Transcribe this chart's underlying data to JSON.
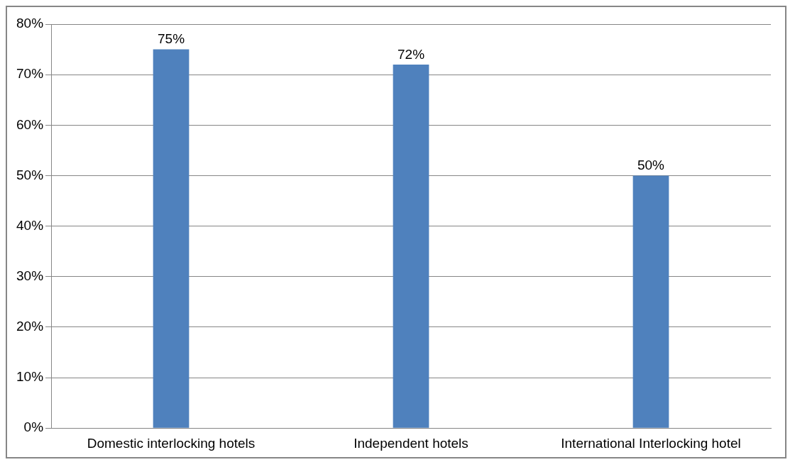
{
  "chart_data": {
    "type": "bar",
    "categories": [
      "Domestic interlocking hotels",
      "Independent hotels",
      "International Interlocking hotel"
    ],
    "values": [
      75,
      72,
      50
    ],
    "color": "#4f81bd",
    "value_labels": [
      "75%",
      "72%",
      "50%"
    ],
    "ylim": [
      0,
      80
    ],
    "yticks": [
      {
        "value": 0,
        "label": "0%"
      },
      {
        "value": 10,
        "label": "10%"
      },
      {
        "value": 20,
        "label": "20%"
      },
      {
        "value": 30,
        "label": "30%"
      },
      {
        "value": 40,
        "label": "40%"
      },
      {
        "value": 50,
        "label": "50%"
      },
      {
        "value": 60,
        "label": "60%"
      },
      {
        "value": 70,
        "label": "70%"
      },
      {
        "value": 80,
        "label": "80%"
      }
    ],
    "grid": "y",
    "legend": false
  }
}
